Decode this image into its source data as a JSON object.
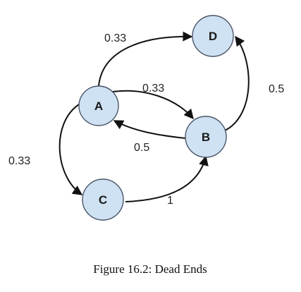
{
  "nodes": [
    {
      "id": "A",
      "label": "A"
    },
    {
      "id": "B",
      "label": "B"
    },
    {
      "id": "C",
      "label": "C"
    },
    {
      "id": "D",
      "label": "D"
    }
  ],
  "edges": [
    {
      "from": "A",
      "to": "D",
      "weight": "0.33"
    },
    {
      "from": "A",
      "to": "B",
      "weight": "0.33"
    },
    {
      "from": "A",
      "to": "C",
      "weight": "0.33"
    },
    {
      "from": "B",
      "to": "A",
      "weight": "0.5"
    },
    {
      "from": "B",
      "to": "D",
      "weight": "0.5"
    },
    {
      "from": "C",
      "to": "B",
      "weight": "1"
    }
  ],
  "colors": {
    "node_fill": "#cfe2f3",
    "node_stroke": "#4a5568",
    "edge": "#111111"
  },
  "caption": "Figure 16.2: Dead Ends"
}
